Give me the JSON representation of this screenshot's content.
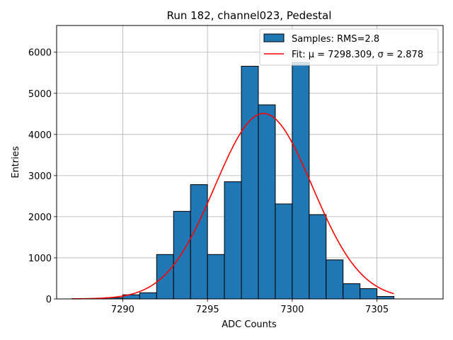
{
  "chart_data": {
    "type": "bar",
    "title": "Run 182, channel023, Pedestal",
    "xlabel": "ADC Counts",
    "ylabel": "Entries",
    "xlim": [
      7286.1,
      7308.9
    ],
    "ylim": [
      0,
      6650
    ],
    "xticks": [
      7290,
      7295,
      7300,
      7305
    ],
    "yticks": [
      0,
      1000,
      2000,
      3000,
      4000,
      5000,
      6000
    ],
    "grid": true,
    "legend_position": "top-right",
    "bins": {
      "edges": [
        7287,
        7288,
        7289,
        7290,
        7291,
        7292,
        7293,
        7294,
        7295,
        7296,
        7297,
        7298,
        7299,
        7300,
        7301,
        7302,
        7303,
        7304,
        7305,
        7306
      ],
      "counts": [
        5,
        10,
        30,
        100,
        150,
        1080,
        2130,
        2780,
        1080,
        2850,
        5660,
        4720,
        2310,
        5750,
        2050,
        950,
        370,
        250,
        60
      ]
    },
    "fit": {
      "mu": 7298.309,
      "sigma": 2.878,
      "amplitude": 4510,
      "x_range": [
        7287,
        7306
      ]
    },
    "series": [
      {
        "name": "Samples: RMS=2.8",
        "kind": "histogram",
        "color": "#1f77b4"
      },
      {
        "name": "Fit: μ = 7298.309, σ = 2.878",
        "kind": "line",
        "color": "#ff0000"
      }
    ]
  }
}
